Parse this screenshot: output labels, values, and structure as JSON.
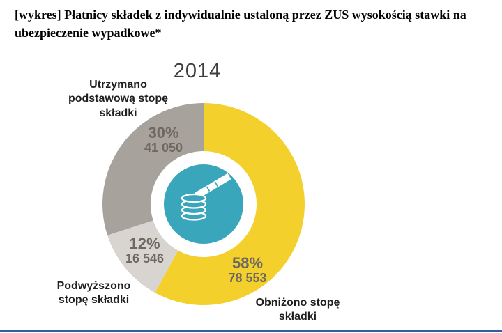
{
  "page": {
    "title": "[wykres] Płatnicy składek z indywidualnie ustaloną przez ZUS wysokością stawki na ubezpieczenie wypadkowe*"
  },
  "chart_data": {
    "type": "pie",
    "subtype": "donut",
    "title": "2014",
    "direction": "clockwise",
    "start_angle_deg": 0,
    "center_color": "#3AA6BB",
    "center_icon": "coins-and-tape-measure",
    "legend_position": "around",
    "slices": [
      {
        "id": "obnizono",
        "label": "Obniżono stopę składki",
        "label_lines": [
          "Obniżono stopę",
          "składki"
        ],
        "percent": 58,
        "percent_label": "58%",
        "count": 78553,
        "count_label": "78 553",
        "color": "#F3D02C"
      },
      {
        "id": "podwyzszono",
        "label": "Podwyższono stopę składki",
        "label_lines": [
          "Podwyższono",
          "stopę składki"
        ],
        "percent": 12,
        "percent_label": "12%",
        "count": 16546,
        "count_label": "16 546",
        "color": "#D8D5D0"
      },
      {
        "id": "utrzymano",
        "label": "Utrzymano podstawową stopę składki",
        "label_lines": [
          "Utrzymano",
          "podstawową stopę",
          "składki"
        ],
        "percent": 30,
        "percent_label": "30%",
        "count": 41050,
        "count_label": "41 050",
        "color": "#A7A29B"
      }
    ]
  },
  "footer": {
    "divider_color": "#2C5FA5"
  }
}
